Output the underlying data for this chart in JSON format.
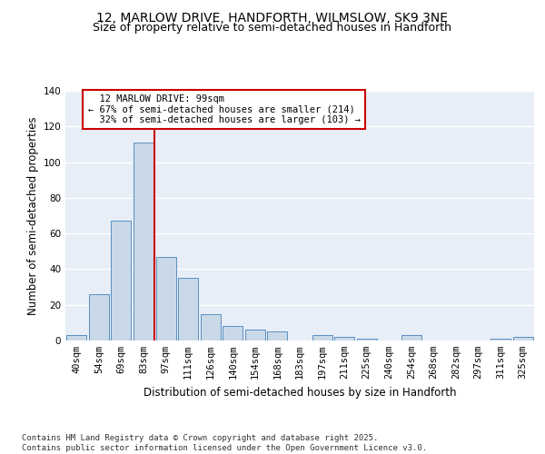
{
  "title1": "12, MARLOW DRIVE, HANDFORTH, WILMSLOW, SK9 3NE",
  "title2": "Size of property relative to semi-detached houses in Handforth",
  "xlabel": "Distribution of semi-detached houses by size in Handforth",
  "ylabel": "Number of semi-detached properties",
  "categories": [
    "40sqm",
    "54sqm",
    "69sqm",
    "83sqm",
    "97sqm",
    "111sqm",
    "126sqm",
    "140sqm",
    "154sqm",
    "168sqm",
    "183sqm",
    "197sqm",
    "211sqm",
    "225sqm",
    "240sqm",
    "254sqm",
    "268sqm",
    "282sqm",
    "297sqm",
    "311sqm",
    "325sqm"
  ],
  "values": [
    3,
    26,
    67,
    111,
    47,
    35,
    15,
    8,
    6,
    5,
    0,
    3,
    2,
    1,
    0,
    3,
    0,
    0,
    0,
    1,
    2
  ],
  "bar_color": "#c9d9e8",
  "bar_edge_color": "#5a8fc0",
  "property_label": "12 MARLOW DRIVE: 99sqm",
  "pct_smaller": 67,
  "n_smaller": 214,
  "pct_larger": 32,
  "n_larger": 103,
  "vline_color": "#cc0000",
  "annotation_box_color": "#cc0000",
  "ylim": [
    0,
    140
  ],
  "yticks": [
    0,
    20,
    40,
    60,
    80,
    100,
    120,
    140
  ],
  "background_color": "#e8eef8",
  "footer": "Contains HM Land Registry data © Crown copyright and database right 2025.\nContains public sector information licensed under the Open Government Licence v3.0.",
  "title_fontsize": 10,
  "subtitle_fontsize": 9,
  "tick_fontsize": 7.5,
  "annotation_fontsize": 7.5
}
